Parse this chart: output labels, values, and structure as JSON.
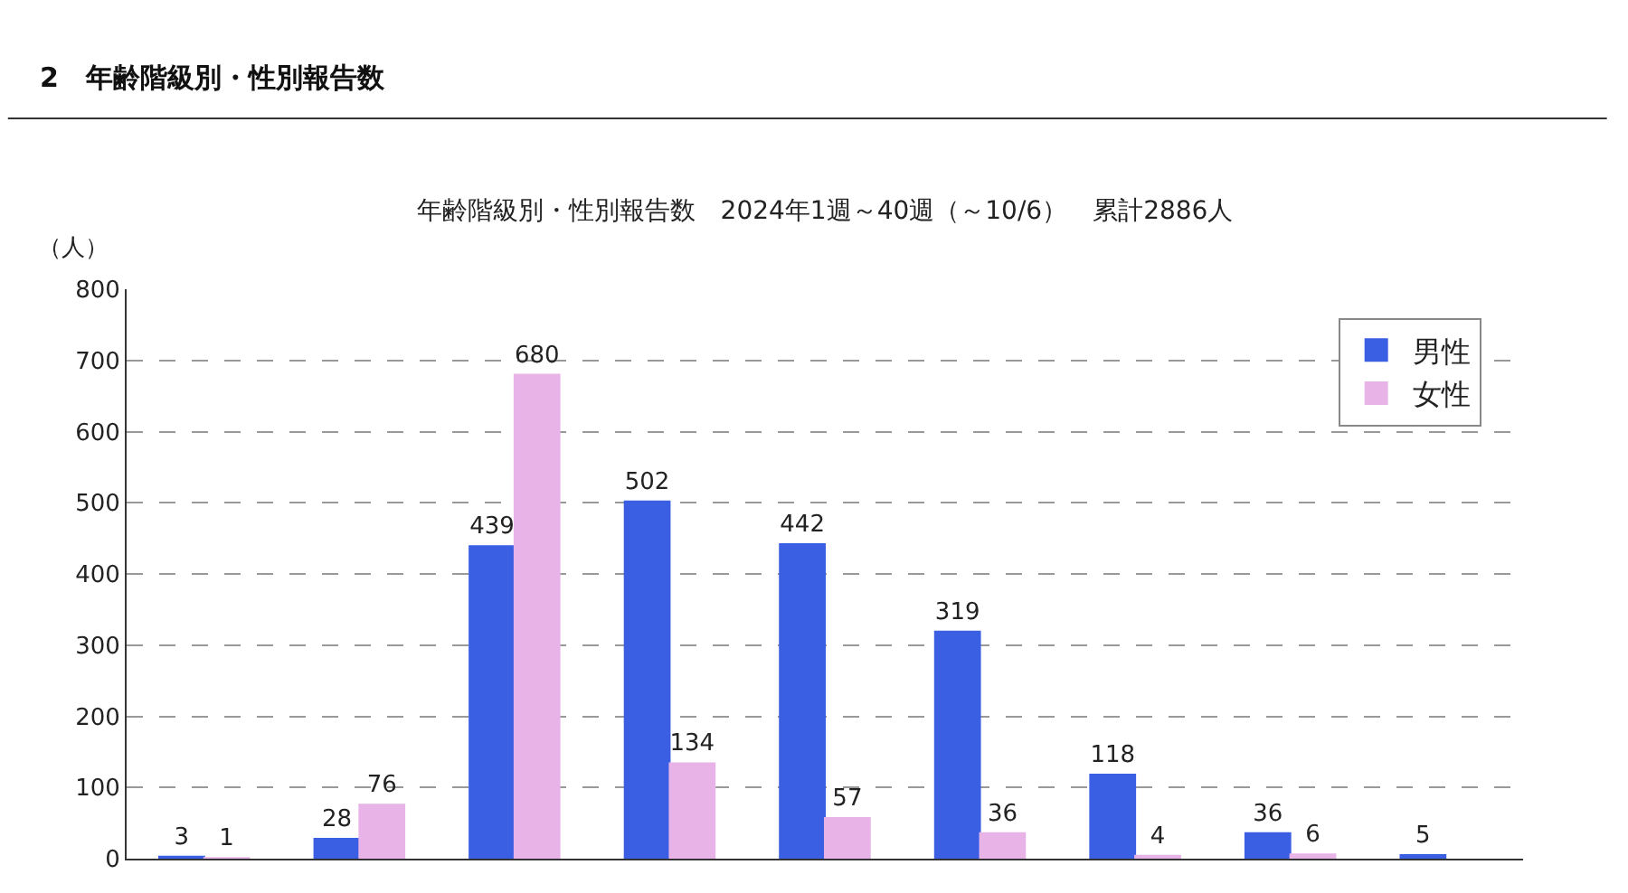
{
  "chart_data": {
    "type": "bar",
    "title": "年齢階級別・性別報告数　2024年1週～40週（～10/6）　累計2886人",
    "ylabel": "（人）",
    "annotations": [
      "2　年齢階級別・性別報告数"
    ],
    "categories": [
      null,
      null,
      null,
      null,
      null,
      null,
      null,
      null,
      null
    ],
    "series": [
      {
        "name": "男性",
        "color": "#3b5fe3",
        "values": [
          3,
          28,
          439,
          502,
          442,
          319,
          118,
          36,
          5
        ]
      },
      {
        "name": "女性",
        "color": "#e8b4e8",
        "values": [
          1,
          76,
          680,
          134,
          57,
          36,
          4,
          6,
          null
        ]
      }
    ],
    "ylim": [
      0,
      800
    ],
    "yticks": [
      0,
      100,
      200,
      300,
      400,
      500,
      600,
      700,
      800
    ],
    "grid": "y",
    "legend": "top right",
    "data_labels": true
  }
}
